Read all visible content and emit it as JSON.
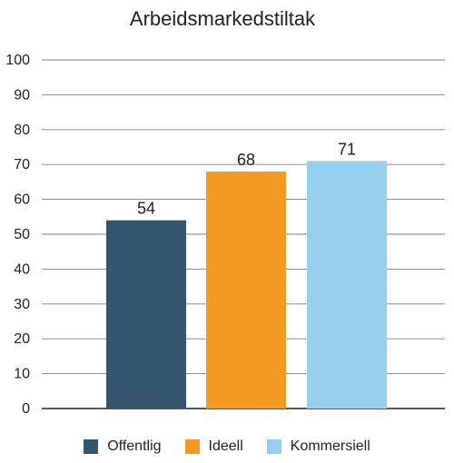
{
  "chart_data": {
    "type": "bar",
    "title": "Arbeidsmarkedstiltak",
    "xlabel": "",
    "ylabel": "",
    "ylim": [
      0,
      100
    ],
    "yticks": [
      0,
      10,
      20,
      30,
      40,
      50,
      60,
      70,
      80,
      90,
      100
    ],
    "grid": true,
    "legend_position": "bottom",
    "categories": [
      "Offentlig",
      "Ideell",
      "Kommersiell"
    ],
    "values": [
      54,
      68,
      71
    ],
    "data_labels": [
      "54",
      "68",
      "71"
    ],
    "colors": [
      "#34556e",
      "#f39a22",
      "#99cfee"
    ],
    "gridline_color": "#7f7f7f",
    "axis_color": "#222222"
  }
}
